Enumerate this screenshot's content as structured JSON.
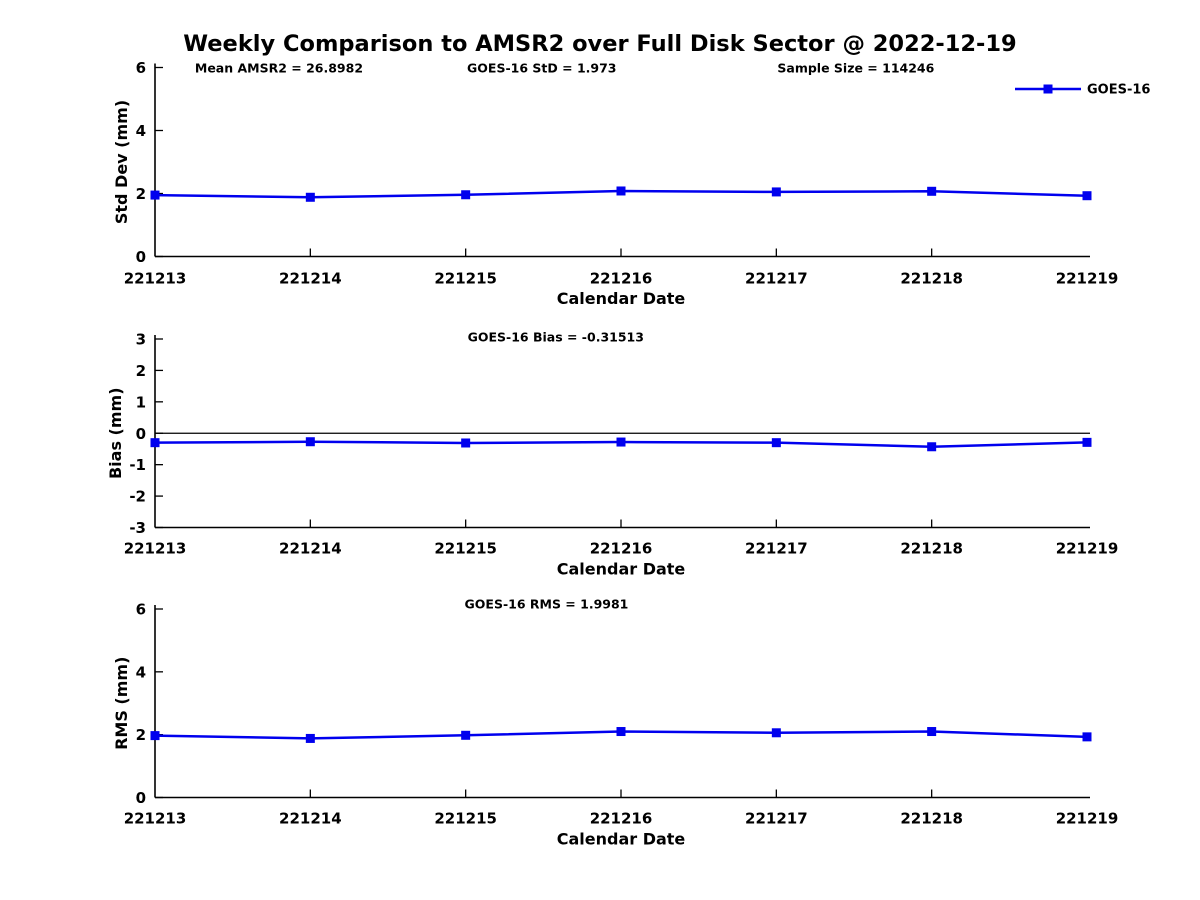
{
  "page": {
    "title": "Weekly Comparison to AMSR2 over Full Disk Sector @ 2022-12-19",
    "background": "#ffffff"
  },
  "colors": {
    "series": "#0000EE",
    "axis": "#000000",
    "text": "#000000"
  },
  "legend": {
    "label": "GOES-16"
  },
  "chart_data": [
    {
      "type": "line",
      "panel": "std-dev",
      "ylabel": "Std Dev (mm)",
      "xlabel": "Calendar Date",
      "ylim": [
        0,
        6
      ],
      "yticks": [
        0,
        2,
        4,
        6
      ],
      "x": [
        "221213",
        "221214",
        "221215",
        "221216",
        "221217",
        "221218",
        "221219"
      ],
      "annotations": [
        "Mean AMSR2 = 26.8982",
        "GOES-16 StD = 1.973",
        "Sample Size = 114246"
      ],
      "legend": {
        "label": "GOES-16",
        "position": "top-right"
      },
      "grid": false,
      "zero_line": false,
      "series": [
        {
          "name": "GOES-16",
          "color": "#0000EE",
          "marker": "square",
          "values": [
            1.95,
            1.88,
            1.96,
            2.08,
            2.05,
            2.07,
            1.93
          ]
        }
      ]
    },
    {
      "type": "line",
      "panel": "bias",
      "ylabel": "Bias (mm)",
      "xlabel": "Calendar Date",
      "ylim": [
        -3,
        3
      ],
      "yticks": [
        3,
        2,
        1,
        0,
        -1,
        -2,
        -3
      ],
      "x": [
        "221213",
        "221214",
        "221215",
        "221216",
        "221217",
        "221218",
        "221219"
      ],
      "annotations": [
        "GOES-16 Bias  = -0.31513"
      ],
      "grid": false,
      "zero_line": true,
      "series": [
        {
          "name": "GOES-16",
          "color": "#0000EE",
          "marker": "square",
          "values": [
            -0.3,
            -0.27,
            -0.31,
            -0.28,
            -0.3,
            -0.43,
            -0.29
          ]
        }
      ]
    },
    {
      "type": "line",
      "panel": "rms",
      "ylabel": "RMS (mm)",
      "xlabel": "Calendar Date",
      "ylim": [
        0,
        6
      ],
      "yticks": [
        0,
        2,
        4,
        6
      ],
      "x": [
        "221213",
        "221214",
        "221215",
        "221216",
        "221217",
        "221218",
        "221219"
      ],
      "annotations": [
        "GOES-16 RMS = 1.9981"
      ],
      "grid": false,
      "zero_line": false,
      "series": [
        {
          "name": "GOES-16",
          "color": "#0000EE",
          "marker": "square",
          "values": [
            1.97,
            1.88,
            1.98,
            2.1,
            2.06,
            2.1,
            1.93
          ]
        }
      ]
    }
  ]
}
